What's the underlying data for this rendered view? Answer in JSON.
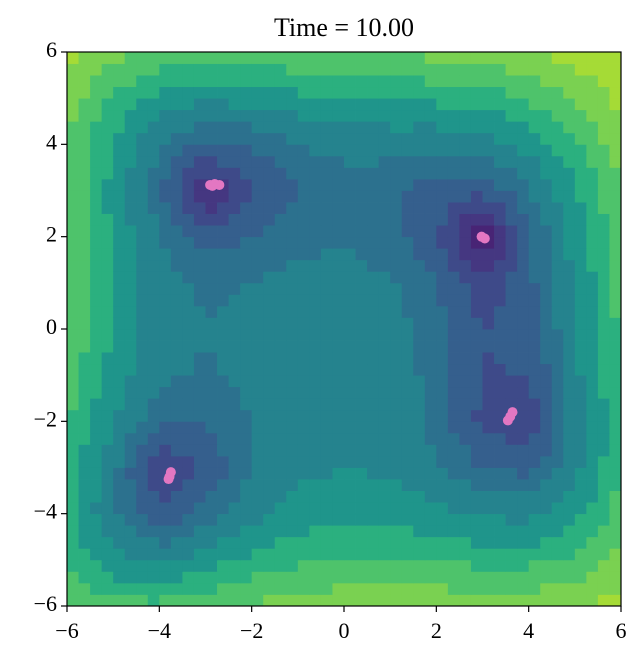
{
  "chart_data": {
    "type": "contour",
    "title": "Time = 10.00",
    "xlim": [
      -6,
      6
    ],
    "ylim": [
      -6,
      6
    ],
    "xticks": [
      {
        "value": -6,
        "label": "−6"
      },
      {
        "value": -4,
        "label": "−4"
      },
      {
        "value": -2,
        "label": "−2"
      },
      0,
      2,
      4,
      6
    ],
    "yticks": [
      {
        "value": -6,
        "label": "−6"
      },
      {
        "value": -4,
        "label": "−4"
      },
      {
        "value": -2,
        "label": "−2"
      },
      0,
      2,
      4,
      6
    ],
    "grid_x": [
      -6,
      -5,
      -4,
      -3,
      -2,
      -1,
      0,
      1,
      2,
      3,
      4,
      5,
      6
    ],
    "grid_y": [
      -6,
      -5,
      -4,
      -3,
      -2,
      -1,
      0,
      1,
      2,
      3,
      4,
      5,
      6
    ],
    "z": [
      [
        890,
        640,
        626,
        740,
        898,
        1040,
        1130,
        1156,
        1130,
        1088,
        1090,
        1220,
        1586
      ],
      [
        544,
        250,
        196,
        274,
        400,
        514,
        580,
        586,
        544,
        490,
        484,
        610,
        976
      ],
      [
        450,
        116,
        26,
        72,
        170,
        260,
        306,
        296,
        242,
        180,
        170,
        296,
        666
      ],
      [
        500,
        130,
        8,
        26,
        100,
        170,
        200,
        178,
        116,
        50,
        40,
        170,
        548
      ],
      [
        610,
        208,
        58,
        52,
        106,
        160,
        178,
        148,
        82,
        16,
        10,
        148,
        538
      ],
      [
        720,
        290,
        116,
        90,
        128,
        170,
        180,
        146,
        80,
        18,
        20,
        170,
        576
      ],
      [
        794,
        340,
        146,
        104,
        130,
        164,
        170,
        136,
        74,
        20,
        34,
        200,
        626
      ],
      [
        820,
        346,
        136,
        82,
        100,
        130,
        136,
        106,
        52,
        10,
        40,
        226,
        676
      ],
      [
        810,
        320,
        98,
        36,
        50,
        80,
        90,
        68,
        26,
        0,
        50,
        260,
        738
      ],
      [
        800,
        298,
        68,
        2,
        16,
        50,
        68,
        58,
        32,
        26,
        100,
        338,
        848
      ],
      [
        850,
        340,
        106,
        40,
        58,
        100,
        130,
        136,
        130,
        148,
        250,
        520,
        1066
      ],
      [
        1044,
        530,
        296,
        234,
        260,
        314,
        360,
        386,
        404,
        450,
        584,
        890,
        1476
      ],
      [
        1490,
        976,
        746,
        692,
        730,
        800,
        866,
        916,
        962,
        1040,
        1210,
        1556,
        2186
      ]
    ],
    "levels": [
      0,
      2,
      8,
      20,
      50,
      100,
      200,
      350,
      550,
      850,
      1300,
      2250
    ],
    "colors": [
      "#482475",
      "#453781",
      "#3e4a89",
      "#355f8d",
      "#2c718e",
      "#25838e",
      "#1f958b",
      "#2bb07f",
      "#4ec36b",
      "#7ad151",
      "#a5db36"
    ],
    "points": {
      "color": "#e377c2",
      "x": [
        -2.9,
        -2.8,
        -2.7,
        -2.85,
        2.98,
        3.05,
        3.6,
        3.65,
        3.55,
        -3.78,
        -3.75,
        -3.8
      ],
      "y": [
        3.12,
        3.14,
        3.12,
        3.1,
        2.0,
        1.96,
        -1.9,
        -1.8,
        -1.98,
        -3.2,
        -3.1,
        -3.25
      ]
    }
  }
}
